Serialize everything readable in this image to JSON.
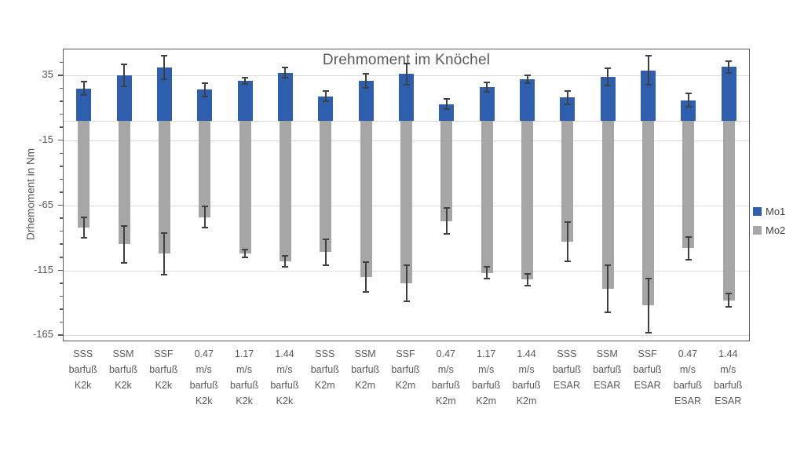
{
  "chart_data": {
    "type": "bar",
    "title": "Drehmoment im Knöchel",
    "ylabel": "Drhemoment in Nm",
    "ylim": [
      -169,
      55
    ],
    "yticks": [
      35,
      -15,
      -65,
      -115,
      -165
    ],
    "minor_tick_step": 10,
    "grid": true,
    "legend_position": "right",
    "categories": [
      [
        "SSS",
        "barfuß",
        "K2k"
      ],
      [
        "SSM",
        "barfuß",
        "K2k"
      ],
      [
        "SSF",
        "barfuß",
        "K2k"
      ],
      [
        "0.47",
        "m/s",
        "barfuß",
        "K2k"
      ],
      [
        "1.17",
        "m/s",
        "barfuß",
        "K2k"
      ],
      [
        "1.44",
        "m/s",
        "barfuß",
        "K2k"
      ],
      [
        "SSS",
        "barfuß",
        "K2m"
      ],
      [
        "SSM",
        "barfuß",
        "K2m"
      ],
      [
        "SSF",
        "barfuß",
        "K2m"
      ],
      [
        "0.47",
        "m/s",
        "barfuß",
        "K2m"
      ],
      [
        "1.17",
        "m/s",
        "barfuß",
        "K2m"
      ],
      [
        "1.44",
        "m/s",
        "barfuß",
        "K2m"
      ],
      [
        "SSS",
        "barfuß",
        "ESAR"
      ],
      [
        "SSM",
        "barfuß",
        "ESAR"
      ],
      [
        "SSF",
        "barfuß",
        "ESAR"
      ],
      [
        "0.47",
        "m/s",
        "barfuß",
        "ESAR"
      ],
      [
        "1.44",
        "m/s",
        "barfuß",
        "ESAR"
      ]
    ],
    "series": [
      {
        "name": "Mo1",
        "color": "#2E5FAE",
        "values": [
          25,
          35,
          41,
          24,
          31,
          37,
          19,
          31,
          36,
          13,
          26,
          32,
          18,
          34,
          39,
          16,
          41.5
        ],
        "errors": [
          5,
          8.5,
          9,
          5,
          2.5,
          4,
          4,
          5.5,
          8,
          4,
          3.5,
          3,
          5,
          6.5,
          11,
          5,
          4.5
        ]
      },
      {
        "name": "Mo2",
        "color": "#A6A6A6",
        "values": [
          -82,
          -95,
          -102,
          -74,
          -102,
          -108,
          -101,
          -120,
          -125,
          -77,
          -117,
          -122,
          -93,
          -129,
          -142,
          -98,
          -138
        ],
        "errors": [
          8,
          14,
          16,
          8,
          3,
          4.5,
          10,
          11.5,
          14,
          10,
          4.5,
          4.5,
          15,
          18,
          21,
          9,
          5
        ]
      }
    ],
    "colors": {
      "error_bar": "#404040",
      "gridline": "#d9d9d9",
      "plot_border": "#595959",
      "text": "#595959"
    }
  }
}
